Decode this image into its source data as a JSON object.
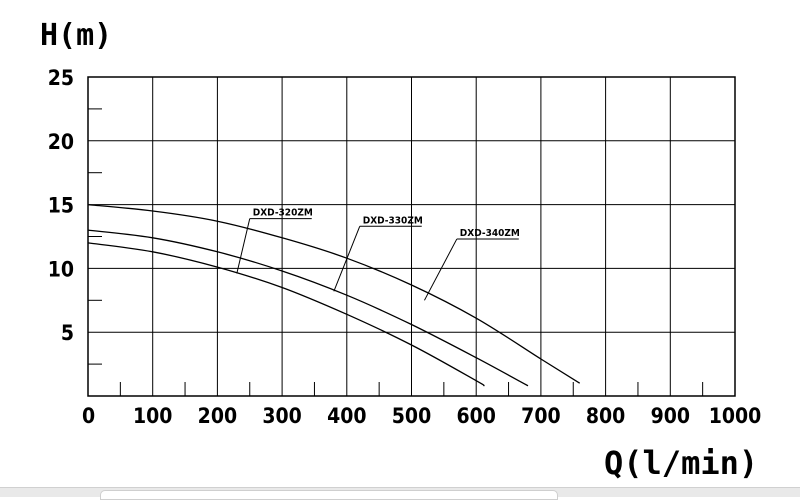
{
  "chart_data": {
    "type": "line",
    "title": "",
    "xlabel": "Q(l/min)",
    "ylabel": "H(m)",
    "xlim": [
      0,
      1000
    ],
    "ylim": [
      0,
      25
    ],
    "x_ticks": [
      0,
      100,
      200,
      300,
      400,
      500,
      600,
      700,
      800,
      900,
      1000
    ],
    "y_ticks": [
      5,
      10,
      15,
      20,
      25
    ],
    "x_tick_labels": [
      "0",
      "100",
      "200",
      "300",
      "400",
      "500",
      "600",
      "700",
      "800",
      "900",
      "1000"
    ],
    "y_tick_labels": [
      "5",
      "10",
      "15",
      "20",
      "25"
    ],
    "grid": true,
    "series": [
      {
        "name": "DXD-320ZM",
        "points": [
          [
            0,
            12.0
          ],
          [
            100,
            11.3
          ],
          [
            200,
            10.1
          ],
          [
            300,
            8.5
          ],
          [
            400,
            6.4
          ],
          [
            500,
            4.0
          ],
          [
            600,
            1.2
          ],
          [
            612,
            0.8
          ]
        ]
      },
      {
        "name": "DXD-330ZM",
        "points": [
          [
            0,
            13.0
          ],
          [
            100,
            12.4
          ],
          [
            200,
            11.3
          ],
          [
            300,
            9.8
          ],
          [
            400,
            7.9
          ],
          [
            500,
            5.6
          ],
          [
            600,
            3.0
          ],
          [
            680,
            0.8
          ]
        ]
      },
      {
        "name": "DXD-340ZM",
        "points": [
          [
            0,
            15.0
          ],
          [
            100,
            14.5
          ],
          [
            200,
            13.7
          ],
          [
            300,
            12.4
          ],
          [
            400,
            10.8
          ],
          [
            500,
            8.7
          ],
          [
            600,
            6.1
          ],
          [
            700,
            2.9
          ],
          [
            760,
            1.0
          ]
        ]
      }
    ],
    "annotations": [
      {
        "series": "DXD-320ZM",
        "text": "DXD-320ZM",
        "anchor": [
          230,
          9.6
        ],
        "label_at": [
          250,
          13.9
        ]
      },
      {
        "series": "DXD-330ZM",
        "text": "DXD-330ZM",
        "anchor": [
          380,
          8.2
        ],
        "label_at": [
          420,
          13.3
        ]
      },
      {
        "series": "DXD-340ZM",
        "text": "DXD-340ZM",
        "anchor": [
          520,
          7.5
        ],
        "label_at": [
          570,
          12.3
        ]
      }
    ]
  }
}
